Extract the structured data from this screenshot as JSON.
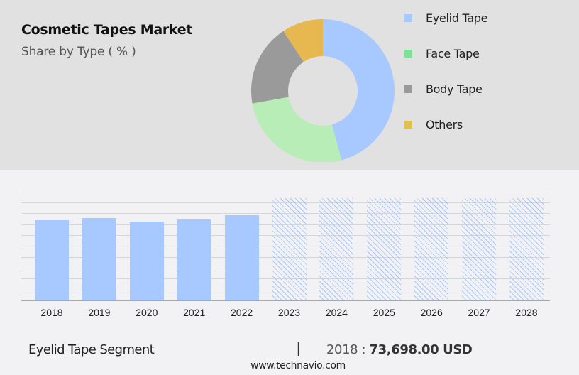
{
  "header": {
    "title": "Cosmetic Tapes Market",
    "subtitle": "Share by Type ( % )"
  },
  "legend": [
    {
      "label": "Eyelid Tape",
      "color": "#a8c9ff"
    },
    {
      "label": "Face Tape",
      "color": "#7fe09a"
    },
    {
      "label": "Body Tape",
      "color": "#9a9a9a"
    },
    {
      "label": "Others",
      "color": "#e0c055"
    }
  ],
  "footer": {
    "segment": "Eyelid Tape Segment",
    "separator": "|",
    "year_label": "2018 : ",
    "value": "73,698.00 USD",
    "url": "www.technavio.com"
  },
  "chart_data": [
    {
      "type": "pie",
      "title": "Cosmetic Tapes Market",
      "subtitle": "Share by Type ( % )",
      "donut": true,
      "categories": [
        "Eyelid Tape",
        "Face Tape",
        "Body Tape",
        "Others"
      ],
      "values": [
        45.8,
        26.4,
        18.5,
        9.3
      ],
      "colors": [
        "#a8c9ff",
        "#b8edb8",
        "#9a9a9a",
        "#e6b84f"
      ],
      "legend_position": "right"
    },
    {
      "type": "bar",
      "title": "Eyelid Tape Segment",
      "categories": [
        "2018",
        "2019",
        "2020",
        "2021",
        "2022",
        "2023",
        "2024",
        "2025",
        "2026",
        "2027",
        "2028"
      ],
      "values": [
        73698,
        75600,
        72400,
        74300,
        78300,
        null,
        null,
        null,
        null,
        null,
        null
      ],
      "forecast_years": [
        "2023",
        "2024",
        "2025",
        "2026",
        "2027",
        "2028"
      ],
      "xlabel": "",
      "ylabel": "",
      "unit": "USD",
      "grid": true,
      "annotation": "2018 : 73,698.00 USD"
    }
  ]
}
